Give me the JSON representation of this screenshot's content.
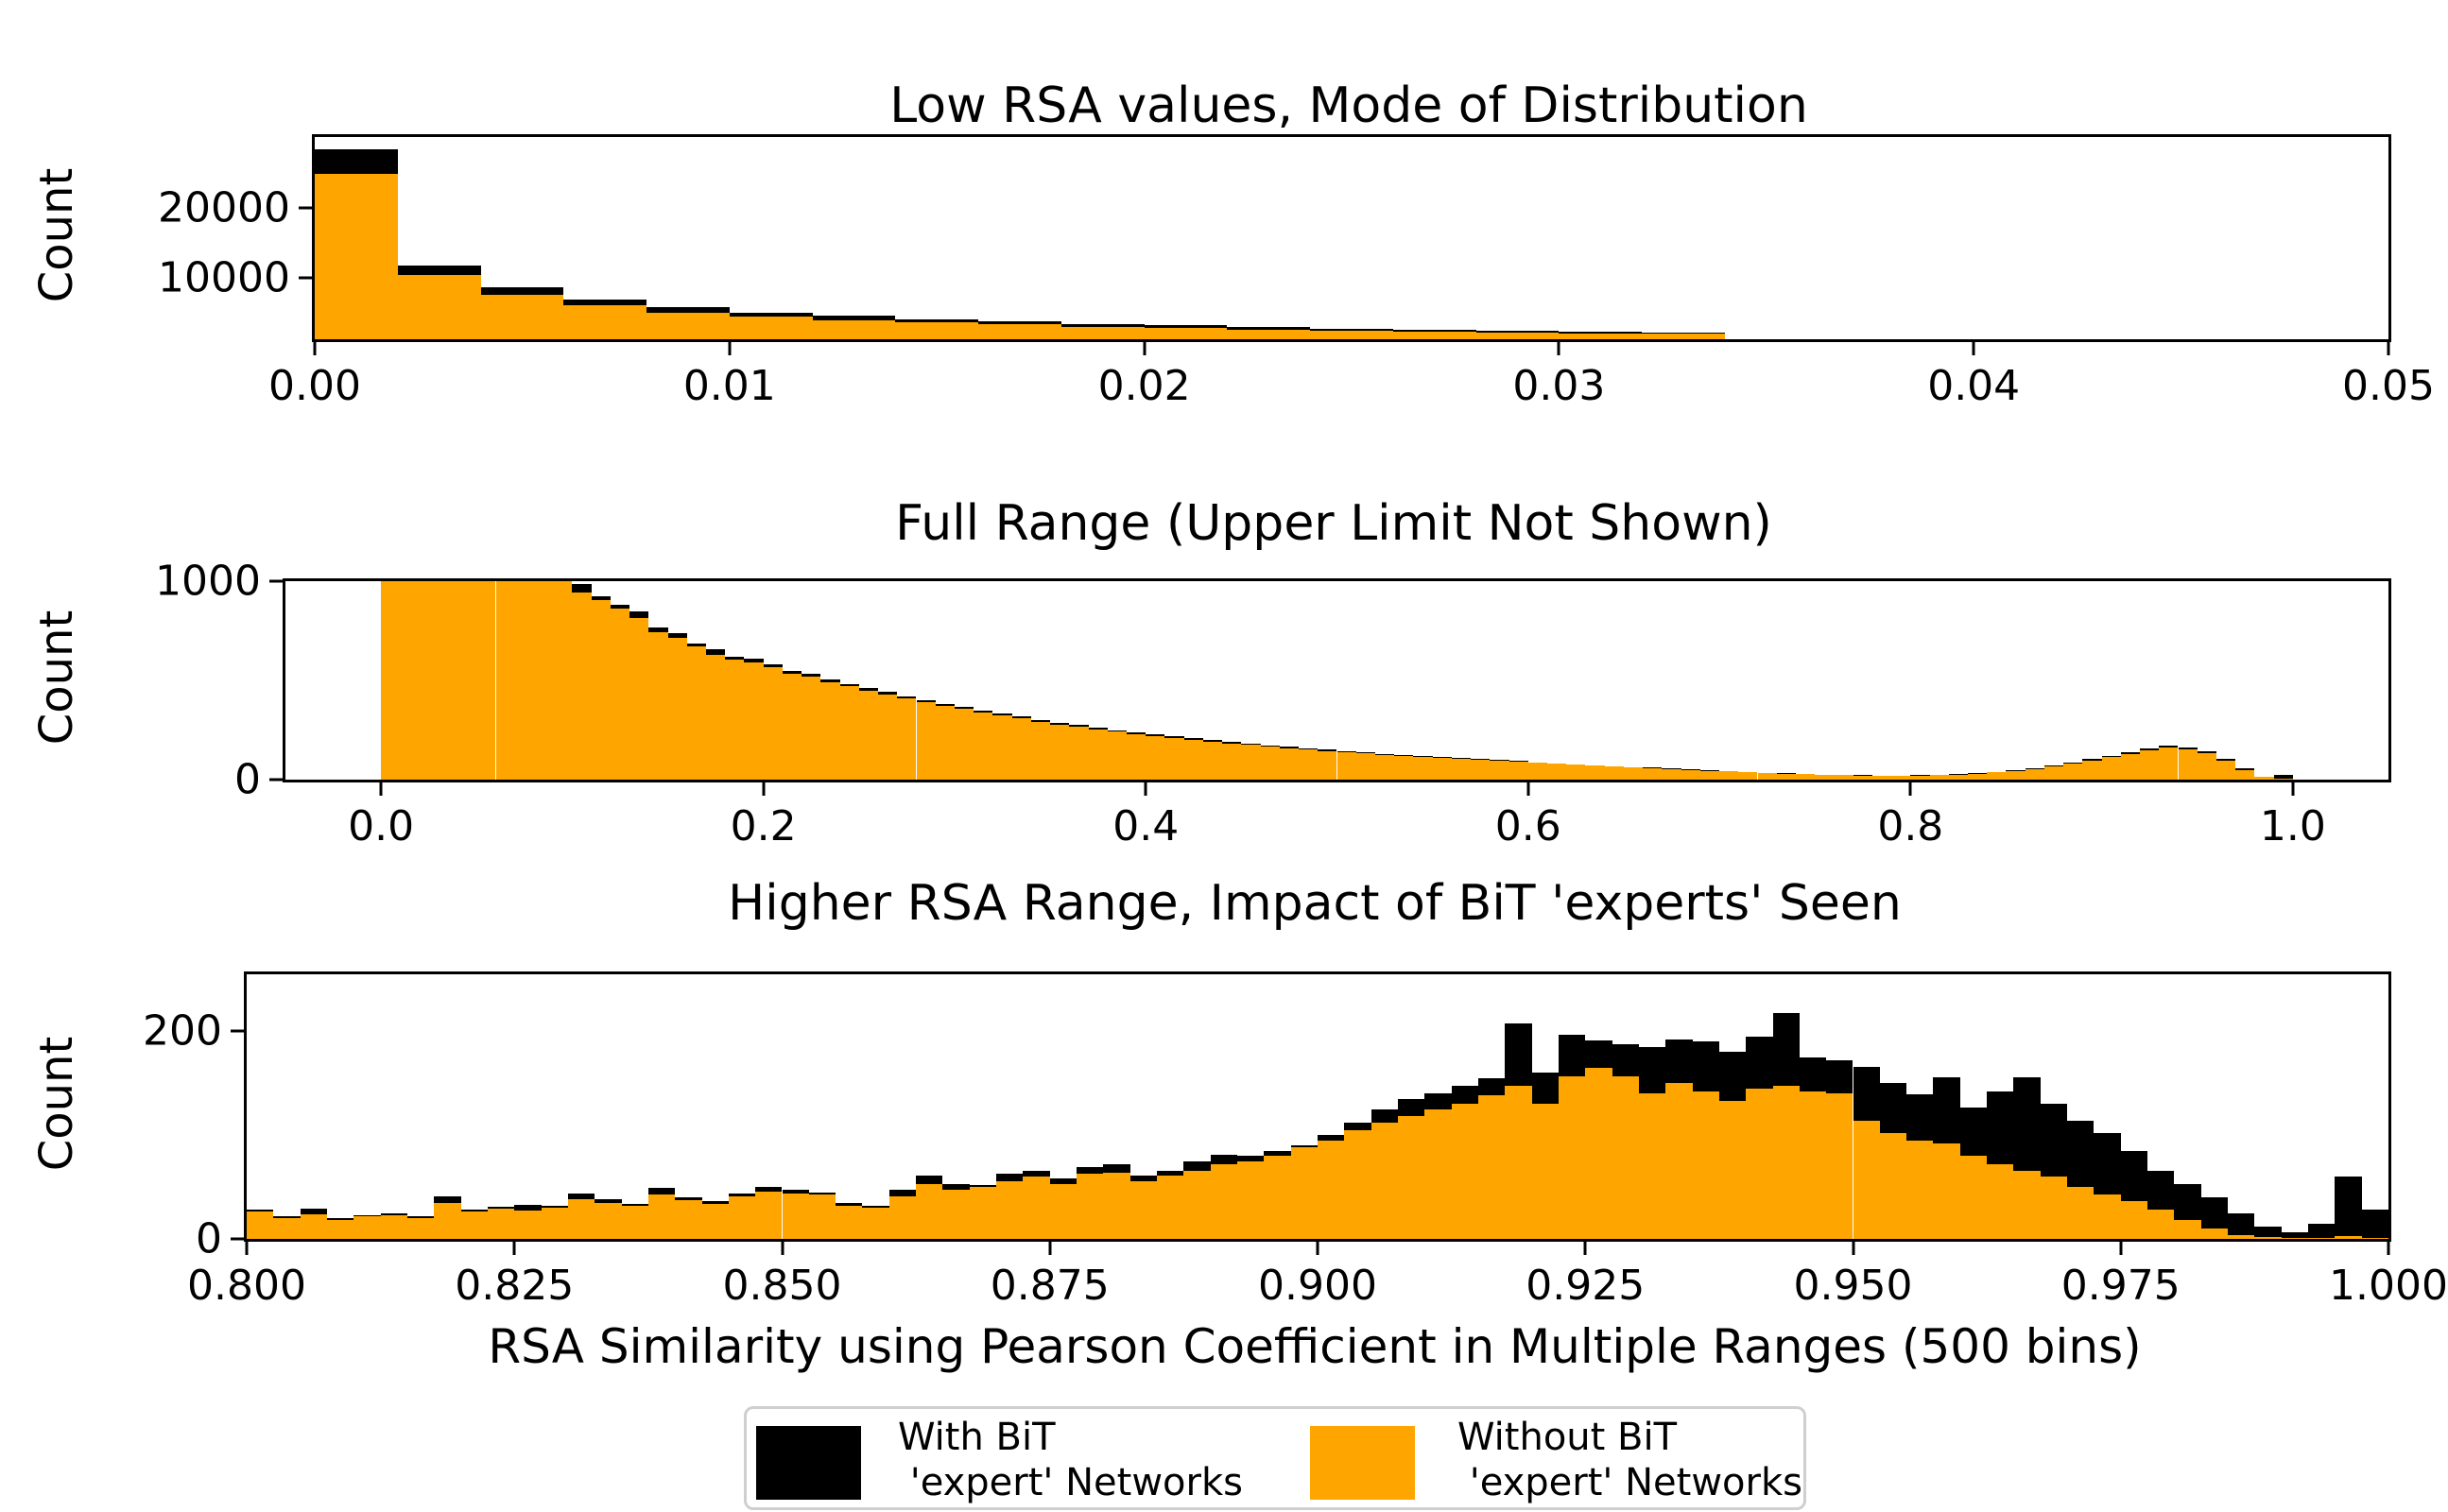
{
  "chart_data": {
    "type": "bar",
    "subtype": "stacked-overlaid-histograms",
    "xlabel": "RSA Similarity using Pearson Coefficient in Multiple Ranges (500 bins)",
    "colors": {
      "with_bit": "#000000",
      "without_bit": "#FFA500"
    },
    "legend": {
      "position": "bottom-center",
      "entries": [
        {
          "name": "with-bit",
          "color": "#000000",
          "line1": "With BiT",
          "line2": " 'expert' Networks"
        },
        {
          "name": "without-bit",
          "color": "#FFA500",
          "line1": "Without BiT",
          "line2": " 'expert' Networks"
        }
      ]
    },
    "charts": [
      {
        "title": "Low RSA values, Mode of Distribution",
        "ylabel": "Count",
        "xlim": [
          0.0,
          0.05
        ],
        "ylim": [
          1300,
          30000
        ],
        "bin_start": 0.0,
        "bin_width": 0.002,
        "xticks": [
          {
            "value": 0.0,
            "label": "0.00"
          },
          {
            "value": 0.01,
            "label": "0.01"
          },
          {
            "value": 0.02,
            "label": "0.02"
          },
          {
            "value": 0.03,
            "label": "0.03"
          },
          {
            "value": 0.04,
            "label": "0.04"
          },
          {
            "value": 0.05,
            "label": "0.05"
          }
        ],
        "yticks": [
          {
            "value": 20000,
            "label": "20000"
          },
          {
            "value": 10000,
            "label": "10000"
          }
        ],
        "series": {
          "with_bit": [
            28300,
            11700,
            8700,
            6900,
            5800,
            5100,
            4600,
            4150,
            3800,
            3500,
            3250,
            3000,
            2800,
            2650,
            2500,
            2400,
            2300
          ],
          "without_bit": [
            24800,
            10400,
            7600,
            6100,
            5100,
            4500,
            4000,
            3700,
            3400,
            3100,
            2900,
            2700,
            2500,
            2350,
            2250,
            2150,
            2050
          ]
        }
      },
      {
        "title": "Full Range (Upper Limit Not Shown)",
        "ylabel": "Count",
        "xlim": [
          -0.05,
          1.05
        ],
        "ylim": [
          0,
          1000
        ],
        "bin_start": 0.0,
        "bin_width": 0.01,
        "xticks": [
          {
            "value": 0.0,
            "label": "0.0"
          },
          {
            "value": 0.2,
            "label": "0.2"
          },
          {
            "value": 0.4,
            "label": "0.4"
          },
          {
            "value": 0.6,
            "label": "0.6"
          },
          {
            "value": 0.8,
            "label": "0.8"
          },
          {
            "value": 1.0,
            "label": "1.0"
          }
        ],
        "yticks": [
          {
            "value": 1000,
            "label": "1000"
          },
          {
            "value": 0,
            "label": "0"
          }
        ],
        "series": {
          "with_bit": [
            1000,
            1000,
            1000,
            1000,
            1000,
            1000,
            1000,
            1000,
            1000,
            1000,
            985,
            925,
            880,
            850,
            765,
            740,
            685,
            655,
            620,
            610,
            580,
            550,
            535,
            505,
            482,
            463,
            443,
            420,
            402,
            383,
            366,
            349,
            332,
            318,
            302,
            287,
            274,
            262,
            249,
            238,
            228,
            217,
            208,
            199,
            190,
            181,
            173,
            165,
            158,
            151,
            144,
            137,
            131,
            125,
            119,
            113,
            108,
            103,
            98,
            93,
            88,
            83,
            78,
            73,
            69,
            64,
            60,
            56,
            52,
            47,
            43,
            39,
            35,
            32,
            29,
            26,
            24,
            22,
            21,
            21,
            22,
            25,
            28,
            33,
            40,
            48,
            59,
            72,
            87,
            104,
            121,
            139,
            158,
            172,
            163,
            142,
            104,
            56,
            15,
            22
          ],
          "without_bit": [
            1000,
            1000,
            1000,
            1000,
            1000,
            1000,
            1000,
            1000,
            1000,
            1000,
            945,
            905,
            860,
            815,
            745,
            715,
            670,
            630,
            605,
            590,
            565,
            535,
            520,
            490,
            470,
            450,
            430,
            408,
            390,
            372,
            355,
            338,
            322,
            308,
            292,
            278,
            265,
            253,
            241,
            230,
            220,
            210,
            201,
            192,
            183,
            175,
            167,
            159,
            152,
            145,
            139,
            132,
            126,
            120,
            114,
            109,
            104,
            99,
            94,
            89,
            84,
            79,
            75,
            70,
            66,
            61,
            57,
            53,
            49,
            45,
            41,
            37,
            33,
            30,
            27,
            24,
            22,
            20,
            19,
            19,
            20,
            22,
            25,
            30,
            36,
            44,
            54,
            66,
            80,
            96,
            112,
            128,
            146,
            160,
            152,
            132,
            96,
            50,
            12,
            4
          ]
        }
      },
      {
        "title": "Higher RSA Range, Impact of BiT 'experts' Seen",
        "ylabel": "Count",
        "xlim": [
          0.8,
          1.0
        ],
        "ylim": [
          0,
          255
        ],
        "bin_start": 0.8,
        "bin_width": 0.0025,
        "xticks": [
          {
            "value": 0.8,
            "label": "0.800"
          },
          {
            "value": 0.825,
            "label": "0.825"
          },
          {
            "value": 0.85,
            "label": "0.850"
          },
          {
            "value": 0.875,
            "label": "0.875"
          },
          {
            "value": 0.9,
            "label": "0.900"
          },
          {
            "value": 0.925,
            "label": "0.925"
          },
          {
            "value": 0.95,
            "label": "0.950"
          },
          {
            "value": 0.975,
            "label": "0.975"
          },
          {
            "value": 1.0,
            "label": "1.000"
          }
        ],
        "yticks": [
          {
            "value": 200,
            "label": "200"
          },
          {
            "value": 0,
            "label": "0"
          }
        ],
        "series": {
          "with_bit": [
            28,
            22,
            29,
            20,
            23,
            25,
            22,
            41,
            28,
            31,
            33,
            32,
            44,
            38,
            34,
            49,
            40,
            36,
            44,
            50,
            47,
            45,
            35,
            32,
            47,
            61,
            53,
            52,
            63,
            66,
            58,
            69,
            72,
            61,
            66,
            75,
            81,
            80,
            85,
            90,
            100,
            112,
            125,
            135,
            140,
            148,
            155,
            208,
            160,
            197,
            191,
            188,
            185,
            192,
            190,
            180,
            195,
            218,
            175,
            172,
            166,
            150,
            139,
            156,
            127,
            142,
            156,
            130,
            114,
            102,
            85,
            66,
            53,
            40,
            25,
            12,
            6,
            15,
            60,
            28
          ],
          "without_bit": [
            26,
            20,
            24,
            18,
            22,
            23,
            20,
            35,
            26,
            29,
            27,
            30,
            38,
            35,
            32,
            43,
            37,
            34,
            41,
            46,
            44,
            43,
            32,
            30,
            41,
            53,
            47,
            50,
            56,
            60,
            53,
            63,
            64,
            56,
            61,
            66,
            72,
            75,
            80,
            88,
            95,
            105,
            112,
            118,
            125,
            130,
            138,
            148,
            130,
            157,
            165,
            157,
            140,
            150,
            142,
            133,
            145,
            148,
            142,
            140,
            114,
            102,
            95,
            92,
            80,
            72,
            66,
            60,
            50,
            43,
            36,
            28,
            18,
            10,
            4,
            2,
            1,
            1,
            3,
            1
          ]
        }
      }
    ]
  }
}
